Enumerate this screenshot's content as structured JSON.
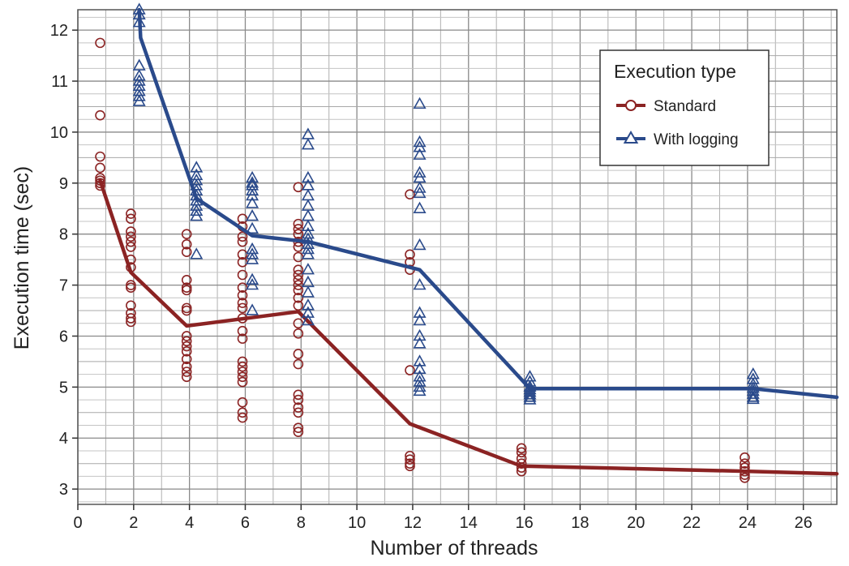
{
  "chart_data": {
    "type": "line",
    "title": "",
    "xlabel": "Number of threads",
    "ylabel": "Execution time (sec)",
    "xlim": [
      0,
      27.2
    ],
    "ylim": [
      2.7,
      12.4
    ],
    "grid": "on",
    "x_ticks": [
      0,
      2,
      4,
      6,
      8,
      10,
      12,
      14,
      16,
      18,
      20,
      22,
      24,
      26
    ],
    "y_ticks": [
      3,
      4,
      5,
      6,
      7,
      8,
      9,
      10,
      11,
      12
    ],
    "legend": {
      "title": "Execution type",
      "placement": "top-right"
    },
    "series": [
      {
        "name": "Standard",
        "color": "#8b2323",
        "marker": "circle",
        "line": [
          [
            0.8,
            9.05
          ],
          [
            1.9,
            7.25
          ],
          [
            3.9,
            6.2
          ],
          [
            7.9,
            6.48
          ],
          [
            11.9,
            4.28
          ],
          [
            15.9,
            3.45
          ],
          [
            23.9,
            3.35
          ],
          [
            27.2,
            3.3
          ]
        ],
        "points": [
          [
            0.8,
            11.75
          ],
          [
            0.8,
            10.33
          ],
          [
            0.8,
            9.52
          ],
          [
            0.8,
            9.3
          ],
          [
            0.8,
            9.1
          ],
          [
            0.8,
            9.05
          ],
          [
            0.8,
            9.0
          ],
          [
            0.8,
            8.95
          ],
          [
            1.9,
            8.4
          ],
          [
            1.9,
            8.3
          ],
          [
            1.9,
            8.05
          ],
          [
            1.9,
            7.95
          ],
          [
            1.9,
            7.85
          ],
          [
            1.9,
            7.75
          ],
          [
            1.9,
            7.5
          ],
          [
            1.9,
            7.35
          ],
          [
            1.9,
            7.0
          ],
          [
            1.9,
            6.95
          ],
          [
            1.9,
            6.6
          ],
          [
            1.9,
            6.45
          ],
          [
            1.9,
            6.35
          ],
          [
            1.9,
            6.28
          ],
          [
            3.9,
            8.0
          ],
          [
            3.9,
            7.8
          ],
          [
            3.9,
            7.65
          ],
          [
            3.9,
            7.1
          ],
          [
            3.9,
            6.95
          ],
          [
            3.9,
            6.9
          ],
          [
            3.9,
            6.55
          ],
          [
            3.9,
            6.5
          ],
          [
            3.9,
            6.0
          ],
          [
            3.9,
            5.9
          ],
          [
            3.9,
            5.8
          ],
          [
            3.9,
            5.7
          ],
          [
            3.9,
            5.55
          ],
          [
            3.9,
            5.4
          ],
          [
            3.9,
            5.3
          ],
          [
            3.9,
            5.2
          ],
          [
            5.9,
            8.3
          ],
          [
            5.9,
            8.15
          ],
          [
            5.9,
            7.95
          ],
          [
            5.9,
            7.85
          ],
          [
            5.9,
            7.6
          ],
          [
            5.9,
            7.45
          ],
          [
            5.9,
            7.2
          ],
          [
            5.9,
            6.95
          ],
          [
            5.9,
            6.8
          ],
          [
            5.9,
            6.65
          ],
          [
            5.9,
            6.55
          ],
          [
            5.9,
            6.35
          ],
          [
            5.9,
            6.1
          ],
          [
            5.9,
            5.95
          ],
          [
            5.9,
            5.5
          ],
          [
            5.9,
            5.4
          ],
          [
            5.9,
            5.3
          ],
          [
            5.9,
            5.2
          ],
          [
            5.9,
            5.1
          ],
          [
            5.9,
            4.7
          ],
          [
            5.9,
            4.5
          ],
          [
            5.9,
            4.4
          ],
          [
            7.9,
            8.92
          ],
          [
            7.9,
            8.2
          ],
          [
            7.9,
            8.1
          ],
          [
            7.9,
            8.0
          ],
          [
            7.9,
            7.85
          ],
          [
            7.9,
            7.75
          ],
          [
            7.9,
            7.55
          ],
          [
            7.9,
            7.3
          ],
          [
            7.9,
            7.2
          ],
          [
            7.9,
            7.1
          ],
          [
            7.9,
            7.0
          ],
          [
            7.9,
            6.9
          ],
          [
            7.9,
            6.75
          ],
          [
            7.9,
            6.6
          ],
          [
            7.9,
            6.25
          ],
          [
            7.9,
            6.05
          ],
          [
            7.9,
            5.65
          ],
          [
            7.9,
            5.45
          ],
          [
            7.9,
            4.85
          ],
          [
            7.9,
            4.75
          ],
          [
            7.9,
            4.6
          ],
          [
            7.9,
            4.5
          ],
          [
            7.9,
            4.2
          ],
          [
            7.9,
            4.12
          ],
          [
            11.9,
            8.78
          ],
          [
            11.9,
            7.6
          ],
          [
            11.9,
            7.45
          ],
          [
            11.9,
            7.3
          ],
          [
            11.9,
            5.33
          ],
          [
            11.9,
            3.65
          ],
          [
            11.9,
            3.58
          ],
          [
            11.9,
            3.5
          ],
          [
            11.9,
            3.45
          ],
          [
            15.9,
            3.8
          ],
          [
            15.9,
            3.72
          ],
          [
            15.9,
            3.6
          ],
          [
            15.9,
            3.5
          ],
          [
            15.9,
            3.42
          ],
          [
            15.9,
            3.35
          ],
          [
            23.9,
            3.62
          ],
          [
            23.9,
            3.5
          ],
          [
            23.9,
            3.42
          ],
          [
            23.9,
            3.35
          ],
          [
            23.9,
            3.28
          ],
          [
            23.9,
            3.22
          ]
        ]
      },
      {
        "name": "With logging",
        "color": "#2a4a8b",
        "marker": "triangle",
        "line": [
          [
            2.2,
            12.4
          ],
          [
            2.25,
            11.85
          ],
          [
            4.25,
            8.7
          ],
          [
            6.25,
            7.97
          ],
          [
            8.25,
            7.85
          ],
          [
            12.25,
            7.3
          ],
          [
            16.2,
            4.97
          ],
          [
            24.2,
            4.97
          ],
          [
            27.2,
            4.8
          ]
        ],
        "points": [
          [
            2.2,
            12.4
          ],
          [
            2.2,
            12.3
          ],
          [
            2.2,
            12.15
          ],
          [
            2.2,
            11.3
          ],
          [
            2.2,
            11.1
          ],
          [
            2.2,
            11.0
          ],
          [
            2.2,
            10.9
          ],
          [
            2.2,
            10.8
          ],
          [
            2.2,
            10.7
          ],
          [
            2.2,
            10.6
          ],
          [
            4.25,
            9.3
          ],
          [
            4.25,
            9.15
          ],
          [
            4.25,
            9.05
          ],
          [
            4.25,
            8.95
          ],
          [
            4.25,
            8.85
          ],
          [
            4.25,
            8.75
          ],
          [
            4.25,
            8.65
          ],
          [
            4.25,
            8.55
          ],
          [
            4.25,
            8.45
          ],
          [
            4.25,
            8.35
          ],
          [
            4.25,
            7.6
          ],
          [
            6.25,
            9.1
          ],
          [
            6.25,
            9.0
          ],
          [
            6.25,
            8.95
          ],
          [
            6.25,
            8.85
          ],
          [
            6.25,
            8.75
          ],
          [
            6.25,
            8.6
          ],
          [
            6.25,
            8.35
          ],
          [
            6.25,
            8.1
          ],
          [
            6.25,
            7.7
          ],
          [
            6.25,
            7.6
          ],
          [
            6.25,
            7.5
          ],
          [
            6.25,
            7.1
          ],
          [
            6.25,
            7.0
          ],
          [
            6.25,
            6.5
          ],
          [
            8.25,
            9.95
          ],
          [
            8.25,
            9.75
          ],
          [
            8.25,
            9.1
          ],
          [
            8.25,
            8.95
          ],
          [
            8.25,
            8.75
          ],
          [
            8.25,
            8.55
          ],
          [
            8.25,
            8.35
          ],
          [
            8.25,
            8.15
          ],
          [
            8.25,
            8.0
          ],
          [
            8.25,
            7.9
          ],
          [
            8.25,
            7.8
          ],
          [
            8.25,
            7.7
          ],
          [
            8.25,
            7.6
          ],
          [
            8.25,
            7.3
          ],
          [
            8.25,
            7.05
          ],
          [
            8.25,
            6.85
          ],
          [
            8.25,
            6.6
          ],
          [
            8.25,
            6.45
          ],
          [
            8.25,
            6.3
          ],
          [
            12.25,
            10.55
          ],
          [
            12.25,
            9.8
          ],
          [
            12.25,
            9.7
          ],
          [
            12.25,
            9.55
          ],
          [
            12.25,
            9.2
          ],
          [
            12.25,
            9.1
          ],
          [
            12.25,
            8.9
          ],
          [
            12.25,
            8.8
          ],
          [
            12.25,
            8.5
          ],
          [
            12.25,
            7.78
          ],
          [
            12.25,
            7.0
          ],
          [
            12.25,
            6.45
          ],
          [
            12.25,
            6.3
          ],
          [
            12.25,
            6.0
          ],
          [
            12.25,
            5.85
          ],
          [
            12.25,
            5.5
          ],
          [
            12.25,
            5.35
          ],
          [
            12.25,
            5.2
          ],
          [
            12.25,
            5.1
          ],
          [
            12.25,
            5.0
          ],
          [
            12.25,
            4.92
          ],
          [
            16.2,
            5.2
          ],
          [
            16.2,
            5.1
          ],
          [
            16.2,
            5.0
          ],
          [
            16.2,
            4.95
          ],
          [
            16.2,
            4.9
          ],
          [
            16.2,
            4.85
          ],
          [
            16.2,
            4.8
          ],
          [
            16.2,
            4.75
          ],
          [
            24.2,
            5.25
          ],
          [
            24.2,
            5.15
          ],
          [
            24.2,
            5.05
          ],
          [
            24.2,
            4.98
          ],
          [
            24.2,
            4.92
          ],
          [
            24.2,
            4.86
          ],
          [
            24.2,
            4.8
          ],
          [
            24.2,
            4.76
          ]
        ]
      }
    ]
  }
}
